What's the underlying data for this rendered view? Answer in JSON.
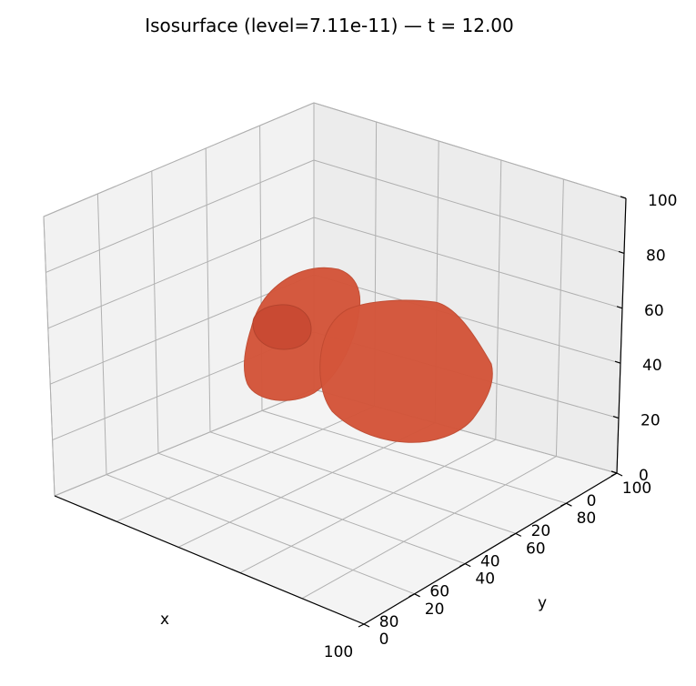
{
  "chart_data": {
    "type": "isosurface",
    "title": "Isosurface (level=7.11e-11) — t = 12.00",
    "level": 7.11e-11,
    "t": 12.0,
    "color": "#d4553a",
    "xlabel": "x",
    "ylabel": "y",
    "zlabel": "",
    "xlim": [
      0,
      100
    ],
    "ylim": [
      0,
      100
    ],
    "zlim": [
      0,
      100
    ],
    "x_ticks": [
      "100",
      "80",
      "60",
      "40",
      "20",
      "0"
    ],
    "y_ticks": [
      "0",
      "20",
      "40",
      "60",
      "80",
      "100"
    ],
    "z_ticks": [
      "0",
      "20",
      "40",
      "60",
      "80",
      "100"
    ],
    "grid": true,
    "surfaces": [
      {
        "center": {
          "x": 72,
          "y": 22,
          "z": 55
        },
        "radius": 16
      },
      {
        "center": {
          "x": 40,
          "y": 45,
          "z": 45
        },
        "radius": 25
      }
    ]
  }
}
